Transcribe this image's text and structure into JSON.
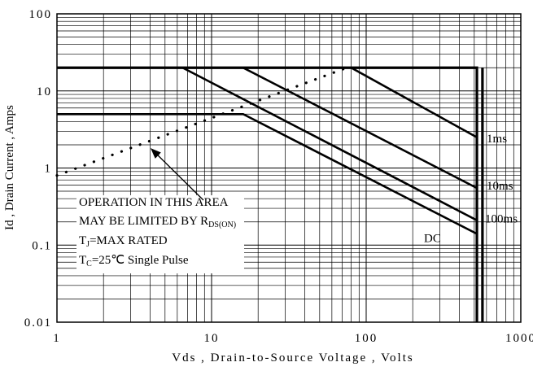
{
  "chart_data": {
    "type": "line",
    "xlabel": "Vds , Drain-to-Source Voltage , Volts",
    "ylabel": "Id , Drain Current , Amps",
    "xscale": "log",
    "yscale": "log",
    "xlim": [
      1,
      1000
    ],
    "ylim": [
      0.01,
      100
    ],
    "xticks": [
      1,
      10,
      100,
      1000
    ],
    "yticks": [
      0.01,
      0.1,
      1,
      10,
      100
    ],
    "grid": true,
    "series": [
      {
        "name": "1ms",
        "color": "#000000",
        "x": [
          80,
          520
        ],
        "values": [
          20,
          2.5
        ]
      },
      {
        "name": "10ms",
        "color": "#000000",
        "x": [
          16,
          520
        ],
        "values": [
          20,
          0.55
        ]
      },
      {
        "name": "100ms",
        "color": "#000000",
        "x": [
          6.5,
          520
        ],
        "values": [
          20,
          0.21
        ]
      },
      {
        "name": "DC",
        "color": "#000000",
        "x": [
          1,
          16,
          520
        ],
        "values": [
          5,
          5,
          0.14
        ]
      }
    ],
    "boundaries": [
      {
        "color": "#000000",
        "x": [
          1,
          520,
          520
        ],
        "values": [
          20,
          20,
          0.01
        ]
      },
      {
        "color": "#000000",
        "x": [
          565,
          565
        ],
        "values": [
          20,
          0.01
        ]
      }
    ],
    "rds_limit": {
      "color": "#000000",
      "style": "dotted",
      "x": [
        1,
        75
      ],
      "values": [
        0.8,
        20
      ]
    },
    "annotation": {
      "lines": [
        [
          "OPERATION IN THIS AREA"
        ],
        [
          "MAY BE LIMITED BY R",
          "DS(ON)"
        ],
        [
          "T",
          "J",
          "=MAX RATED"
        ],
        [
          "T",
          "C",
          "=25℃  Single Pulse"
        ]
      ]
    }
  }
}
